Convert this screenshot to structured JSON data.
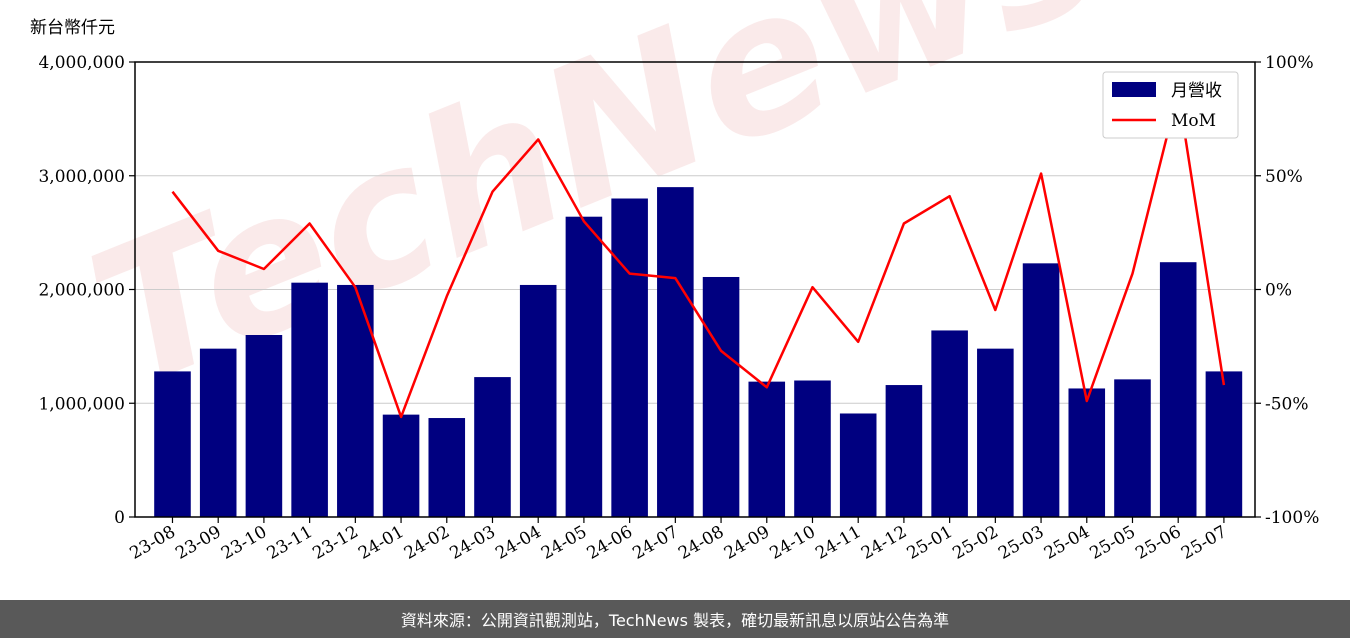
{
  "colors": {
    "bar": "#000080",
    "line": "#ff0000",
    "grid": "#cccccc",
    "footer_bg": "#595959"
  },
  "watermark": "TechNews",
  "footer": {
    "text": "資料來源：公開資訊觀測站，TechNews 製表，確切最新訊息以原站公告為準"
  },
  "chart_data": {
    "type": "bar",
    "unit_label": "新台幣仟元",
    "categories": [
      "23-08",
      "23-09",
      "23-10",
      "23-11",
      "23-12",
      "24-01",
      "24-02",
      "24-03",
      "24-04",
      "24-05",
      "24-06",
      "24-07",
      "24-08",
      "24-09",
      "24-10",
      "24-11",
      "24-12",
      "25-01",
      "25-02",
      "25-03",
      "25-04",
      "25-05",
      "25-06",
      "25-07"
    ],
    "series": [
      {
        "name": "月營收",
        "type": "bar",
        "axis": "left",
        "values": [
          1280000,
          1480000,
          1600000,
          2060000,
          2040000,
          900000,
          870000,
          1230000,
          2040000,
          2640000,
          2800000,
          2900000,
          2110000,
          1190000,
          1200000,
          910000,
          1160000,
          1640000,
          1480000,
          2230000,
          1130000,
          1210000,
          2240000,
          1280000
        ]
      },
      {
        "name": "MoM",
        "type": "line",
        "axis": "right",
        "values": [
          43,
          17,
          9,
          29,
          1,
          -56,
          -3,
          43,
          66,
          30,
          7,
          5,
          -27,
          -43,
          1,
          -23,
          29,
          41,
          -9,
          51,
          -49,
          7,
          87,
          -42
        ]
      }
    ],
    "y_left": {
      "min": 0,
      "max": 4000000,
      "ticks": [
        0,
        1000000,
        2000000,
        3000000,
        4000000
      ],
      "tick_labels": [
        "0",
        "1,000,000",
        "2,000,000",
        "3,000,000",
        "4,000,000"
      ]
    },
    "y_right": {
      "min": -100,
      "max": 100,
      "ticks": [
        -100,
        -50,
        0,
        50,
        100
      ],
      "tick_labels": [
        "-100%",
        "-50%",
        "0%",
        "50%",
        "100%"
      ]
    },
    "grid": true,
    "legend_position": "top-right"
  }
}
